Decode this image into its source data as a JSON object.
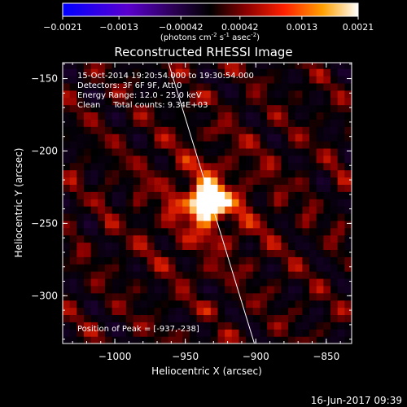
{
  "chart_data": {
    "type": "heatmap",
    "title": "Reconstructed RHESSI Image",
    "xlabel": "Heliocentric X (arcsec)",
    "ylabel": "Heliocentric Y (arcsec)",
    "xlim": [
      -1037,
      -832
    ],
    "ylim": [
      -333,
      -139
    ],
    "x_ticks": [
      -1000,
      -950,
      -900,
      -850
    ],
    "y_ticks": [
      -150,
      -200,
      -250,
      -300
    ],
    "colorbar": {
      "label": "(photons cm",
      "label_exp1": "-2",
      "label_mid": " s",
      "label_exp2": "-1",
      "label_mid2": " asec",
      "label_exp3": "-2",
      "label_end": ")",
      "ticks": [
        "-0.0021",
        "-0.0013",
        "-0.00042",
        "0.00042",
        "0.0013",
        "0.0021"
      ],
      "range": [
        -0.0021,
        0.0021
      ]
    },
    "annotations": [
      "15-Oct-2014 19:20:54.000 to 19:30:54.000",
      "Detectors: 3F 6F 9F, Att 0",
      "Energy Range: 12.0 - 25.0 keV",
      "Clean     Total counts: 9.34E+03"
    ],
    "peak_label": "Position of Peak = [-937,-238]",
    "peak": [
      -937,
      -238
    ],
    "limb_line": [
      [
        -962,
        -139
      ],
      [
        -901,
        -333
      ]
    ]
  },
  "footer": {
    "date": "16-Jun-2017 09:39"
  }
}
